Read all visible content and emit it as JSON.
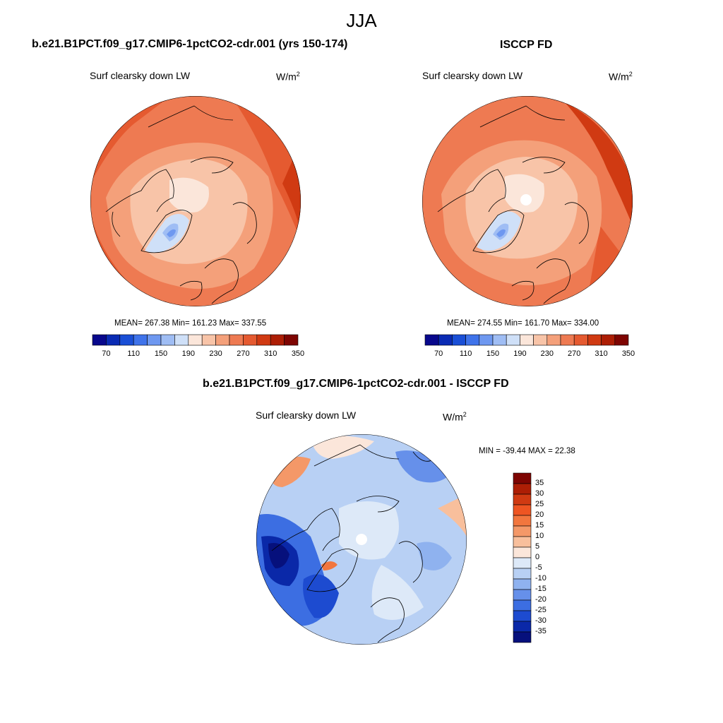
{
  "main_title": "JJA",
  "panels": [
    {
      "title": "b.e21.B1PCT.f09_g17.CMIP6-1pctCO2-cdr.001 (yrs 150-174)",
      "variable": "Surf clearsky down LW",
      "units": "W/m",
      "units_sup": "2",
      "stats": "MEAN= 267.38  Min= 161.23  Max= 337.55"
    },
    {
      "title": "ISCCP FD",
      "variable": "Surf clearsky down LW",
      "units": "W/m",
      "units_sup": "2",
      "stats": "MEAN= 274.55  Min= 161.70  Max= 334.00"
    },
    {
      "title": "b.e21.B1PCT.f09_g17.CMIP6-1pctCO2-cdr.001 - ISCCP FD",
      "variable": "Surf clearsky down LW",
      "units": "W/m",
      "units_sup": "2",
      "stats": "MIN = -39.44 MAX =  22.38"
    }
  ],
  "colorbar_abs": {
    "labels": [
      "70",
      "110",
      "150",
      "190",
      "230",
      "270",
      "310",
      "350"
    ],
    "colors": [
      "#08088c",
      "#0a2bb4",
      "#1a4fd6",
      "#3f73ea",
      "#6e98f0",
      "#9fbdf4",
      "#cfe0f8",
      "#fbe6da",
      "#f8c4a8",
      "#f4a07a",
      "#ee7a52",
      "#e55a30",
      "#d03a12",
      "#ad1e05",
      "#7e0502"
    ]
  },
  "colorbar_diff": {
    "labels": [
      "35",
      "30",
      "25",
      "20",
      "15",
      "10",
      "5",
      "0",
      "-5",
      "-10",
      "-15",
      "-20",
      "-25",
      "-30",
      "-35"
    ],
    "colors": [
      "#7e0502",
      "#ad1e05",
      "#d03a12",
      "#ee5522",
      "#f2763e",
      "#f49868",
      "#f8bf9c",
      "#fbe6da",
      "#dde9f8",
      "#b8d0f4",
      "#8fb2ef",
      "#6690ea",
      "#3c6ee2",
      "#1d4bd0",
      "#0a28a8",
      "#06107c"
    ]
  },
  "chart_data": [
    {
      "type": "map",
      "projection": "north polar stereographic",
      "title": "b.e21.B1PCT.f09_g17.CMIP6-1pctCO2-cdr.001 (yrs 150-174)",
      "field": "Surf clearsky down LW",
      "units": "W/m2",
      "mean": 267.38,
      "min": 161.23,
      "max": 337.55,
      "contour_levels": [
        70,
        90,
        110,
        130,
        150,
        170,
        190,
        210,
        230,
        250,
        270,
        290,
        310,
        330,
        350
      ]
    },
    {
      "type": "map",
      "projection": "north polar stereographic",
      "title": "ISCCP FD",
      "field": "Surf clearsky down LW",
      "units": "W/m2",
      "mean": 274.55,
      "min": 161.7,
      "max": 334.0,
      "contour_levels": [
        70,
        90,
        110,
        130,
        150,
        170,
        190,
        210,
        230,
        250,
        270,
        290,
        310,
        330,
        350
      ]
    },
    {
      "type": "map",
      "projection": "north polar stereographic",
      "title": "b.e21.B1PCT.f09_g17.CMIP6-1pctCO2-cdr.001 - ISCCP FD",
      "field": "Surf clearsky down LW",
      "units": "W/m2",
      "min": -39.44,
      "max": 22.38,
      "contour_levels": [
        -35,
        -30,
        -25,
        -20,
        -15,
        -10,
        -5,
        0,
        5,
        10,
        15,
        20,
        25,
        30,
        35
      ]
    }
  ]
}
